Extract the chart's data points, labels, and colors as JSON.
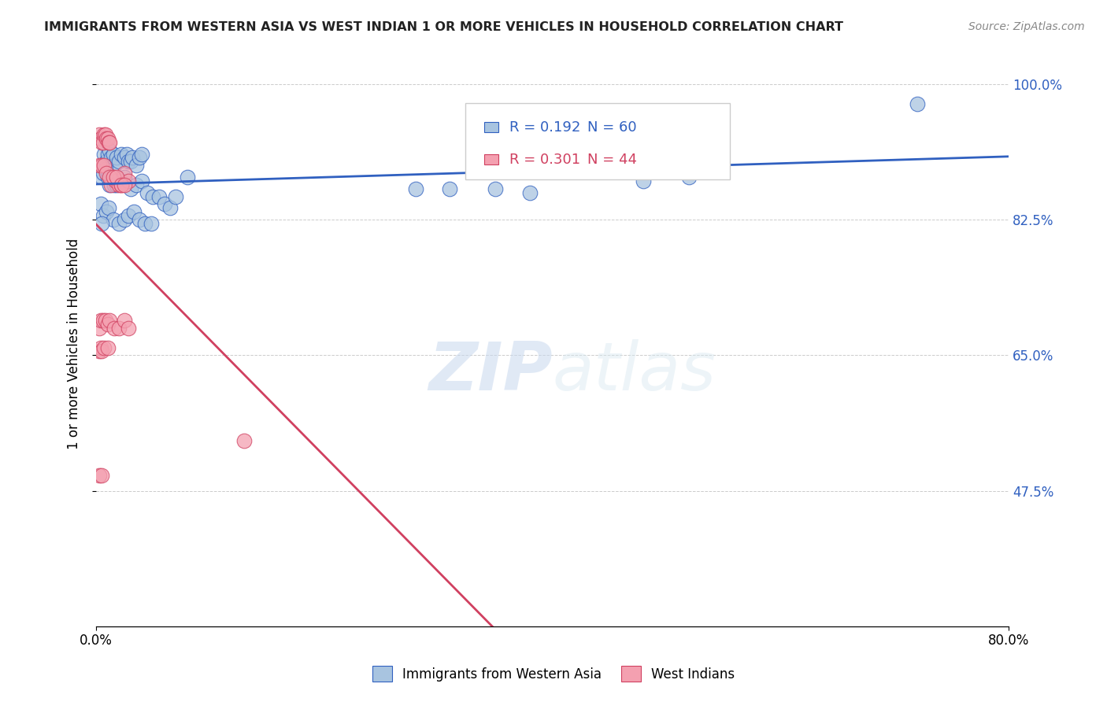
{
  "title": "IMMIGRANTS FROM WESTERN ASIA VS WEST INDIAN 1 OR MORE VEHICLES IN HOUSEHOLD CORRELATION CHART",
  "source": "Source: ZipAtlas.com",
  "ylabel": "1 or more Vehicles in Household",
  "xmin": 0.0,
  "xmax": 0.8,
  "ymin": 0.3,
  "ymax": 1.03,
  "yticks": [
    0.475,
    0.65,
    0.825,
    1.0
  ],
  "ytick_labels": [
    "47.5%",
    "65.0%",
    "82.5%",
    "100.0%"
  ],
  "xtick_labels": [
    "0.0%",
    "80.0%"
  ],
  "legend_blue_r": "R = 0.192",
  "legend_blue_n": "N = 60",
  "legend_pink_r": "R = 0.301",
  "legend_pink_n": "N = 44",
  "blue_color": "#a8c4e0",
  "pink_color": "#f4a0b0",
  "blue_line_color": "#3060c0",
  "pink_line_color": "#d04060",
  "legend_label_blue": "Immigrants from Western Asia",
  "legend_label_pink": "West Indians",
  "watermark_zip": "ZIP",
  "watermark_atlas": "atlas",
  "blue_points_x": [
    0.005,
    0.007,
    0.008,
    0.009,
    0.01,
    0.012,
    0.013,
    0.015,
    0.016,
    0.018,
    0.02,
    0.022,
    0.025,
    0.027,
    0.028,
    0.03,
    0.032,
    0.035,
    0.038,
    0.04,
    0.005,
    0.006,
    0.008,
    0.01,
    0.012,
    0.014,
    0.016,
    0.018,
    0.022,
    0.025,
    0.03,
    0.035,
    0.04,
    0.045,
    0.05,
    0.055,
    0.06,
    0.065,
    0.07,
    0.08,
    0.004,
    0.006,
    0.009,
    0.011,
    0.015,
    0.02,
    0.025,
    0.028,
    0.033,
    0.038,
    0.043,
    0.048,
    0.28,
    0.31,
    0.35,
    0.38,
    0.48,
    0.52,
    0.72,
    0.005
  ],
  "blue_points_y": [
    0.93,
    0.91,
    0.895,
    0.9,
    0.91,
    0.915,
    0.905,
    0.91,
    0.895,
    0.905,
    0.9,
    0.91,
    0.905,
    0.91,
    0.9,
    0.9,
    0.905,
    0.895,
    0.905,
    0.91,
    0.88,
    0.885,
    0.89,
    0.88,
    0.87,
    0.88,
    0.87,
    0.87,
    0.875,
    0.88,
    0.865,
    0.87,
    0.875,
    0.86,
    0.855,
    0.855,
    0.845,
    0.84,
    0.855,
    0.88,
    0.845,
    0.83,
    0.835,
    0.84,
    0.825,
    0.82,
    0.825,
    0.83,
    0.835,
    0.825,
    0.82,
    0.82,
    0.865,
    0.865,
    0.865,
    0.86,
    0.875,
    0.88,
    0.975,
    0.82
  ],
  "pink_points_x": [
    0.003,
    0.004,
    0.005,
    0.006,
    0.007,
    0.008,
    0.009,
    0.01,
    0.011,
    0.012,
    0.013,
    0.015,
    0.017,
    0.02,
    0.022,
    0.025,
    0.028,
    0.003,
    0.005,
    0.007,
    0.009,
    0.012,
    0.015,
    0.018,
    0.022,
    0.025,
    0.003,
    0.004,
    0.006,
    0.008,
    0.01,
    0.012,
    0.016,
    0.02,
    0.025,
    0.028,
    0.003,
    0.004,
    0.005,
    0.007,
    0.01,
    0.13,
    0.003,
    0.005
  ],
  "pink_points_y": [
    0.935,
    0.93,
    0.925,
    0.925,
    0.935,
    0.935,
    0.93,
    0.93,
    0.925,
    0.925,
    0.87,
    0.88,
    0.875,
    0.87,
    0.87,
    0.885,
    0.875,
    0.895,
    0.895,
    0.895,
    0.885,
    0.88,
    0.88,
    0.88,
    0.87,
    0.87,
    0.685,
    0.695,
    0.695,
    0.695,
    0.69,
    0.695,
    0.685,
    0.685,
    0.695,
    0.685,
    0.655,
    0.66,
    0.655,
    0.66,
    0.66,
    0.54,
    0.495,
    0.495
  ],
  "background_color": "#ffffff",
  "grid_color": "#cccccc"
}
